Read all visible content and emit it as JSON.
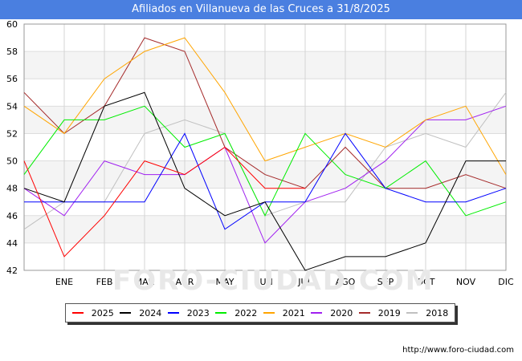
{
  "chart_data": {
    "type": "line",
    "title": "Afiliados en Villanueva de las Cruces a 31/8/2025",
    "categories": [
      "",
      "ENE",
      "FEB",
      "MAR",
      "ABR",
      "MAY",
      "JUN",
      "JUL",
      "AGO",
      "SEP",
      "OCT",
      "NOV",
      "DIC"
    ],
    "ylim": [
      42,
      60
    ],
    "yticks": [
      42,
      44,
      46,
      48,
      50,
      52,
      54,
      56,
      58,
      60
    ],
    "grid": true,
    "legend_position": "bottom",
    "series": [
      {
        "name": "2025",
        "color": "#ff0000",
        "values": [
          50,
          43,
          46,
          50,
          49,
          51,
          48,
          48,
          null,
          null,
          null,
          null,
          null
        ]
      },
      {
        "name": "2024",
        "color": "#000000",
        "values": [
          48,
          47,
          54,
          55,
          48,
          46,
          47,
          42,
          43,
          43,
          44,
          50,
          50
        ]
      },
      {
        "name": "2023",
        "color": "#0000ff",
        "values": [
          47,
          47,
          47,
          47,
          52,
          45,
          47,
          47,
          52,
          48,
          47,
          47,
          48
        ]
      },
      {
        "name": "2022",
        "color": "#00ee00",
        "values": [
          49,
          53,
          53,
          54,
          51,
          52,
          46,
          52,
          49,
          48,
          50,
          46,
          47
        ]
      },
      {
        "name": "2021",
        "color": "#ffa500",
        "values": [
          54,
          52,
          56,
          58,
          59,
          55,
          50,
          51,
          52,
          51,
          53,
          54,
          49
        ]
      },
      {
        "name": "2020",
        "color": "#a020f0",
        "values": [
          48,
          46,
          50,
          49,
          49,
          51,
          44,
          47,
          48,
          50,
          53,
          53,
          54
        ]
      },
      {
        "name": "2019",
        "color": "#a52a2a",
        "values": [
          55,
          52,
          54,
          59,
          58,
          51,
          49,
          48,
          51,
          48,
          48,
          49,
          48
        ]
      },
      {
        "name": "2018",
        "color": "#c0c0c0",
        "values": [
          45,
          47,
          47,
          52,
          53,
          52,
          46,
          47,
          47,
          51,
          52,
          51,
          55
        ]
      }
    ]
  },
  "source_text": "http://www.foro-ciudad.com",
  "watermark_text": "FORO-CIUDAD.COM"
}
